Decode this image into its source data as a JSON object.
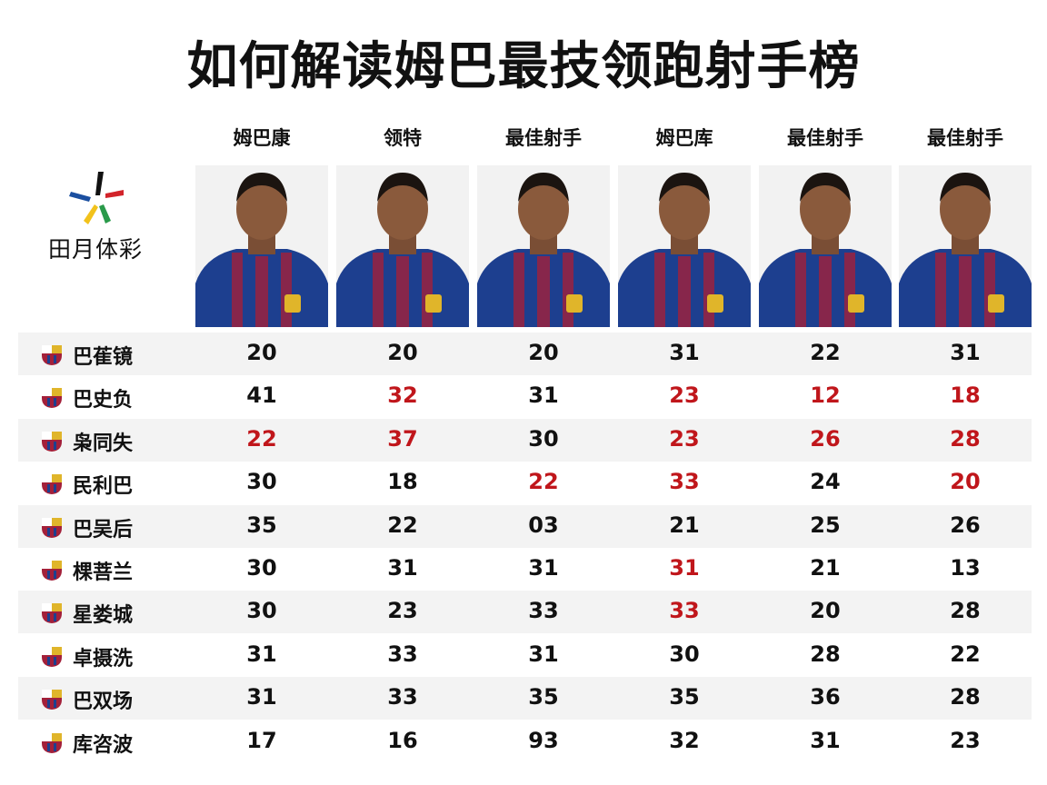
{
  "title": "如何解读姆巴最技领跑射手榜",
  "brand": {
    "text": "田月体彩"
  },
  "colors": {
    "red": "#c0161b",
    "text": "#111111",
    "zebra": "#f3f3f3",
    "jersey_blue": "#1d3f8f",
    "jersey_red": "#a3203a"
  },
  "columns": [
    {
      "label": "姆巴康"
    },
    {
      "label": "领特"
    },
    {
      "label": "最佳射手"
    },
    {
      "label": "姆巴库"
    },
    {
      "label": "最佳射手"
    },
    {
      "label": "最佳射手"
    }
  ],
  "rows": [
    {
      "team": "巴萑镜",
      "values": [
        "20",
        "20",
        "20",
        "31",
        "22",
        "31"
      ],
      "red": []
    },
    {
      "team": "巴史负",
      "values": [
        "41",
        "32",
        "31",
        "23",
        "12",
        "18"
      ],
      "red": [
        1,
        3,
        4,
        5
      ]
    },
    {
      "team": "枭同失",
      "values": [
        "22",
        "37",
        "30",
        "23",
        "26",
        "28"
      ],
      "red": [
        0,
        1,
        3,
        4,
        5
      ]
    },
    {
      "team": "民利巴",
      "values": [
        "30",
        "18",
        "22",
        "33",
        "24",
        "20"
      ],
      "red": [
        2,
        3,
        5
      ]
    },
    {
      "team": "巴吴后",
      "values": [
        "35",
        "22",
        "03",
        "21",
        "25",
        "26"
      ],
      "red": []
    },
    {
      "team": "棵菩兰",
      "values": [
        "30",
        "31",
        "31",
        "31",
        "21",
        "13"
      ],
      "red": [
        3
      ]
    },
    {
      "team": "星娄城",
      "values": [
        "30",
        "23",
        "33",
        "33",
        "20",
        "28"
      ],
      "red": [
        3
      ]
    },
    {
      "team": "卓摄洗",
      "values": [
        "31",
        "33",
        "31",
        "30",
        "28",
        "22"
      ],
      "red": []
    },
    {
      "team": "巴双场",
      "values": [
        "31",
        "33",
        "35",
        "35",
        "36",
        "28"
      ],
      "red": []
    },
    {
      "team": "库咨波",
      "values": [
        "17",
        "16",
        "93",
        "32",
        "31",
        "23"
      ],
      "red": []
    }
  ]
}
